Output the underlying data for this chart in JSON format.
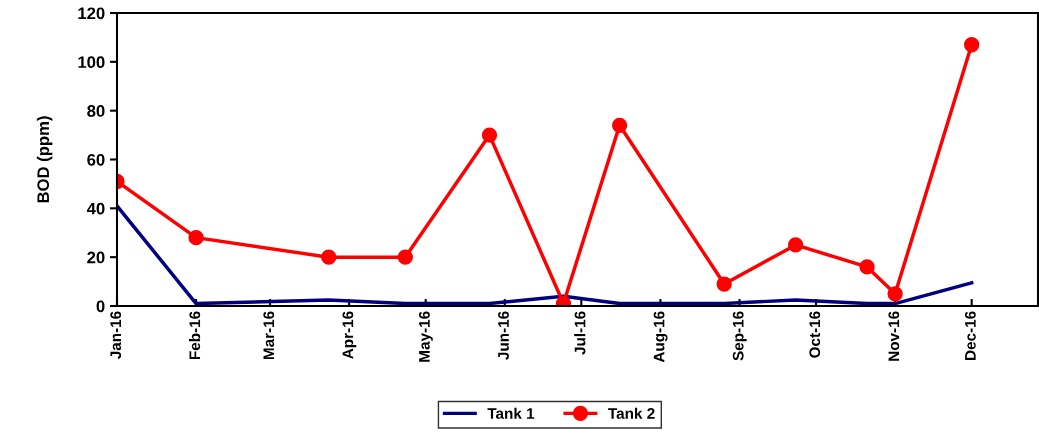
{
  "chart_data": {
    "type": "line",
    "ylabel": "BOD (ppm)",
    "x": [
      "2016-01-01",
      "2016-02-01",
      "2016-03-24",
      "2016-04-23",
      "2016-05-26",
      "2016-06-24",
      "2016-07-16",
      "2016-08-26",
      "2016-09-23",
      "2016-10-21",
      "2016-11-01",
      "2016-12-01"
    ],
    "series": [
      {
        "name": "Tank 1",
        "color": "#000080",
        "marker": "none",
        "values": [
          41,
          1,
          2.5,
          1,
          1,
          4,
          1,
          1,
          2.5,
          1,
          1,
          9.5
        ]
      },
      {
        "name": "Tank 2",
        "color": "#ff0000",
        "marker": "circle",
        "values": [
          51,
          28,
          20,
          20,
          70,
          1,
          74,
          9,
          25,
          16,
          5,
          107
        ]
      }
    ],
    "xlim": [
      "2016-01-01",
      "2016-12-27"
    ],
    "xticks": [
      {
        "value": "2016-01-01",
        "label": "Jan-16"
      },
      {
        "value": "2016-02-01",
        "label": "Feb-16"
      },
      {
        "value": "2016-03-01",
        "label": "Mar-16"
      },
      {
        "value": "2016-04-01",
        "label": "Apr-16"
      },
      {
        "value": "2016-05-01",
        "label": "May-16"
      },
      {
        "value": "2016-06-01",
        "label": "Jun-16"
      },
      {
        "value": "2016-07-01",
        "label": "Jul-16"
      },
      {
        "value": "2016-08-01",
        "label": "Aug-16"
      },
      {
        "value": "2016-09-01",
        "label": "Sep-16"
      },
      {
        "value": "2016-10-01",
        "label": "Oct-16"
      },
      {
        "value": "2016-11-01",
        "label": "Nov-16"
      },
      {
        "value": "2016-12-01",
        "label": "Dec-16"
      }
    ],
    "ylim": [
      0,
      120
    ],
    "yticks": [
      0,
      20,
      40,
      60,
      80,
      100,
      120
    ],
    "grid": false,
    "legend": "bottom",
    "line_style": "solid"
  }
}
